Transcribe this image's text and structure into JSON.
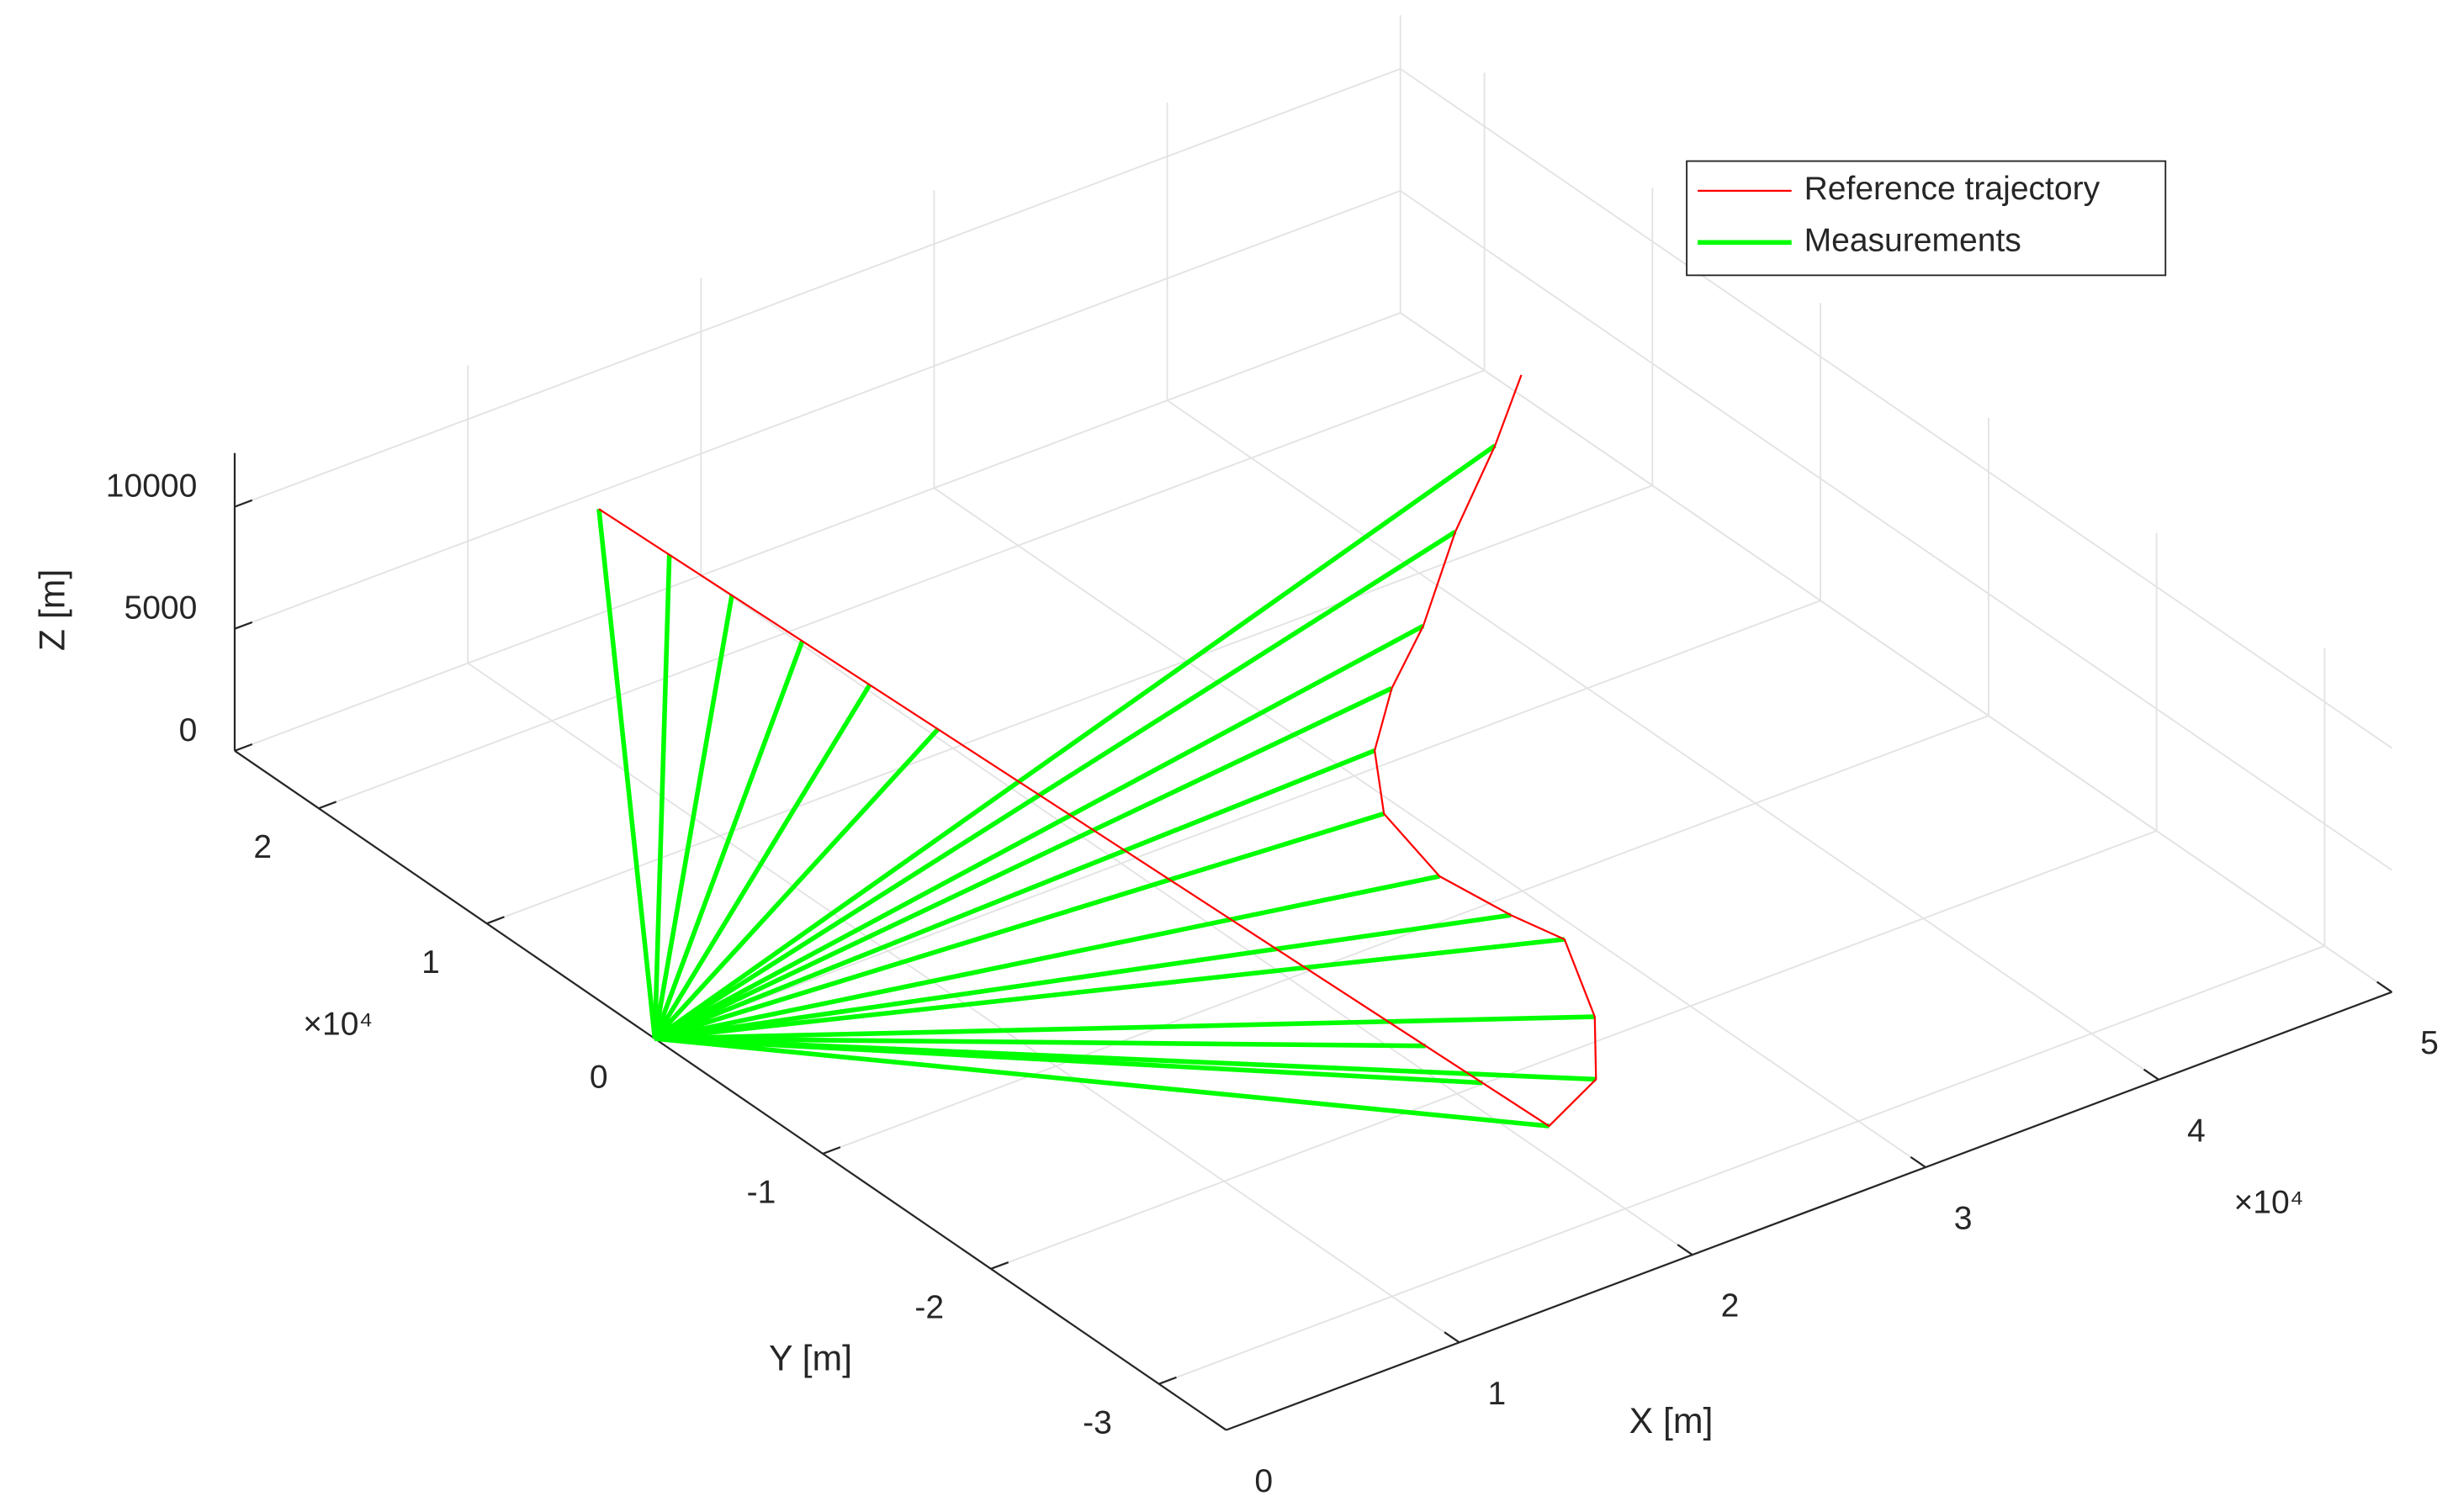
{
  "chart_data": {
    "type": "line3d",
    "xlabel": "X [m]",
    "ylabel": "Y [m]",
    "zlabel": "Z [m]",
    "x_multiplier": "×10⁴",
    "y_multiplier": "×10⁴",
    "xlim": [
      0,
      50000
    ],
    "ylim": [
      -34000,
      25000
    ],
    "zlim": [
      0,
      12200
    ],
    "xticks": [
      {
        "value": 0,
        "label": "0"
      },
      {
        "value": 10000,
        "label": "1"
      },
      {
        "value": 20000,
        "label": "2"
      },
      {
        "value": 30000,
        "label": "3"
      },
      {
        "value": 40000,
        "label": "4"
      },
      {
        "value": 50000,
        "label": "5"
      }
    ],
    "yticks": [
      {
        "value": -30000,
        "label": "-3"
      },
      {
        "value": -20000,
        "label": "-2"
      },
      {
        "value": -10000,
        "label": "-1"
      },
      {
        "value": 0,
        "label": "0"
      },
      {
        "value": 10000,
        "label": "1"
      },
      {
        "value": 20000,
        "label": "2"
      }
    ],
    "zticks": [
      0,
      5000,
      10000
    ],
    "grid": true,
    "legend_position": "upper right",
    "series": [
      {
        "name": "Reference trajectory",
        "color": "#ff0000",
        "x": [
          10000,
          16300,
          19000,
          21000,
          22800,
          21800,
          20900,
          21400,
          23200,
          25700,
          28600,
          32800,
          36400,
          39000
        ],
        "y": [
          17200,
          -30600,
          -29650,
          -26800,
          -22500,
          -20700,
          -17700,
          -13700,
          -10650,
          -8200,
          -6050,
          -2130,
          500,
          2540
        ],
        "z": [
          10000,
          5000,
          5500,
          6000,
          6500,
          7000,
          7500,
          8000,
          8500,
          9000,
          9500,
          10000,
          11000,
          12000
        ]
      },
      {
        "name": "Measurements",
        "color": "#00ff00",
        "sensor": {
          "x": 0,
          "y": 0,
          "z": 0
        },
        "x": [
          10000,
          10470,
          10880,
          11350,
          11800,
          12250,
          15480,
          15860,
          16300,
          19000,
          21000,
          22800,
          21800,
          20900,
          21400,
          23200,
          25700,
          28600,
          32800,
          36400
        ],
        "y": [
          17200,
          13660,
          10510,
          6970,
          3580,
          140,
          -24390,
          -27250,
          -30600,
          -29650,
          -26800,
          -22500,
          -20700,
          -17700,
          -13700,
          -10650,
          -8200,
          -6050,
          -2130,
          500
        ],
        "z": [
          10000,
          9630,
          9300,
          8930,
          8580,
          8220,
          5650,
          5350,
          5000,
          5500,
          6000,
          6500,
          7000,
          7500,
          8000,
          8500,
          9000,
          9500,
          10000,
          11000
        ]
      }
    ]
  }
}
